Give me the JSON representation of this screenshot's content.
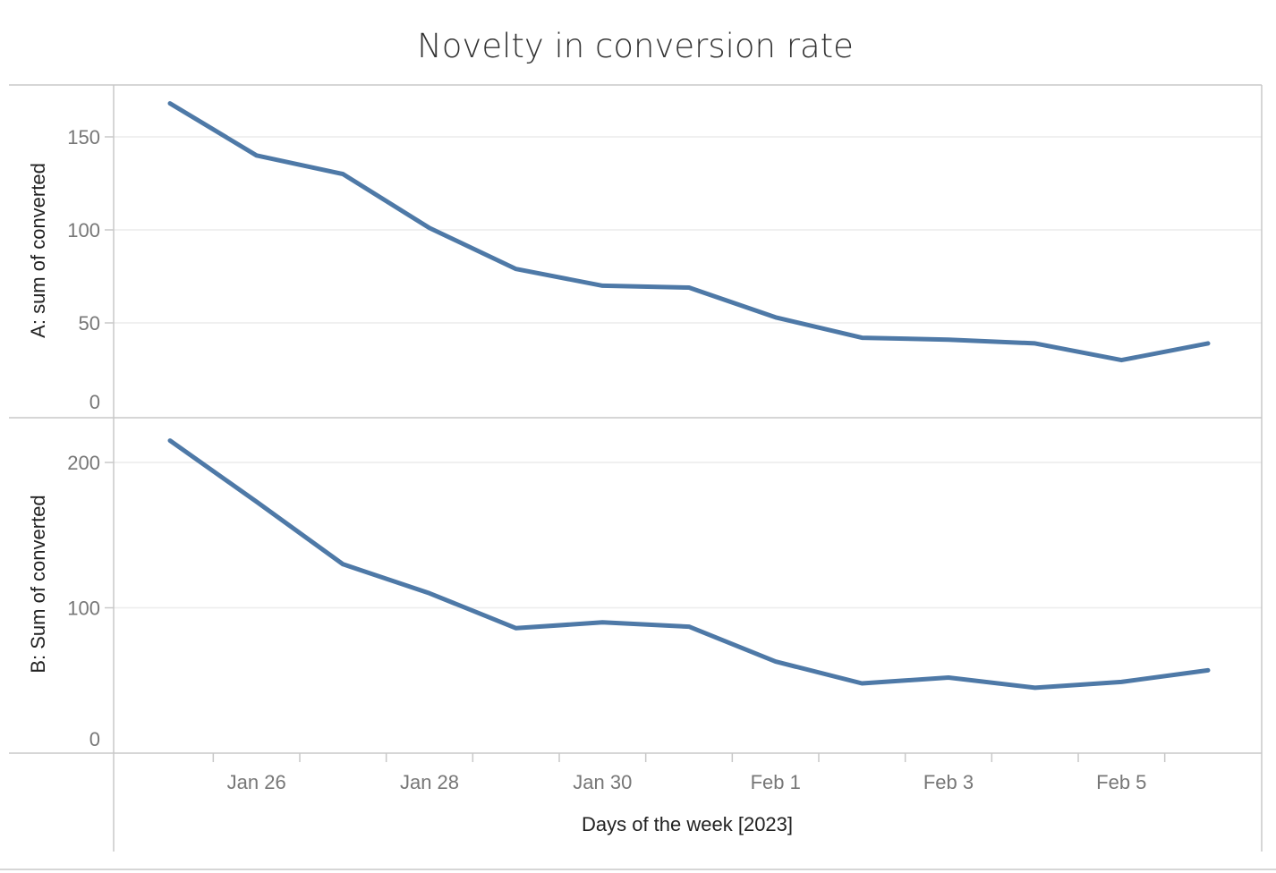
{
  "chart_data": {
    "type": "line",
    "title": "Novelty in conversion rate",
    "xlabel": "Days of the week [2023]",
    "x": [
      "2023-01-25",
      "2023-01-26",
      "2023-01-27",
      "2023-01-28",
      "2023-01-29",
      "2023-01-30",
      "2023-01-31",
      "2023-02-01",
      "2023-02-02",
      "2023-02-03",
      "2023-02-04",
      "2023-02-05",
      "2023-02-06"
    ],
    "x_tick_labels": [
      "Jan 26",
      "Jan 28",
      "Jan 30",
      "Feb 1",
      "Feb 3",
      "Feb 5"
    ],
    "x_tick_dates": [
      "2023-01-26",
      "2023-01-28",
      "2023-01-30",
      "2023-02-01",
      "2023-02-03",
      "2023-02-05"
    ],
    "grid": true,
    "panels": [
      {
        "ylabel": "A: sum of converted",
        "ylim": [
          0,
          175
        ],
        "yticks": [
          0,
          50,
          100,
          150
        ],
        "values": [
          168,
          140,
          130,
          101,
          79,
          70,
          69,
          53,
          42,
          41,
          39,
          30,
          39
        ]
      },
      {
        "ylabel": "B: Sum of converted",
        "ylim": [
          0,
          225
        ],
        "yticks": [
          0,
          100,
          200
        ],
        "values": [
          215,
          173,
          130,
          110,
          86,
          90,
          87,
          63,
          48,
          52,
          45,
          49,
          57
        ]
      }
    ]
  },
  "colors": {
    "line": "#4e79a7",
    "frame": "#c8c8c8",
    "grid": "#ececec"
  }
}
